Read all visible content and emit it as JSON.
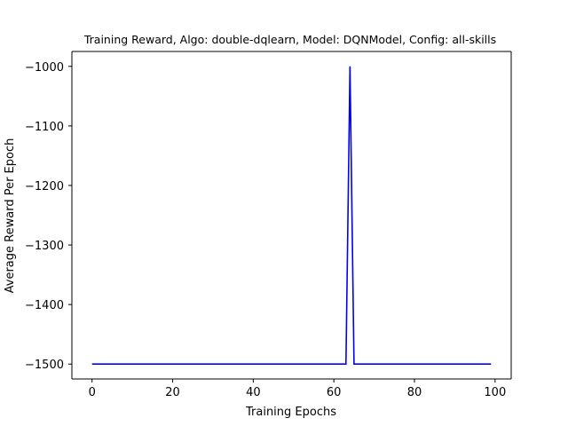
{
  "chart_data": {
    "type": "line",
    "title": "Training Reward, Algo: double-dqlearn, Model: DQNModel, Config: all-skills",
    "xlabel": "Training Epochs",
    "ylabel": "Average Reward Per Epoch",
    "xlim": [
      -5,
      104
    ],
    "ylim": [
      -1525,
      -975
    ],
    "xticks": [
      0,
      20,
      40,
      60,
      80,
      100
    ],
    "yticks": [
      -1500,
      -1400,
      -1300,
      -1200,
      -1100,
      -1000
    ],
    "xtick_labels": [
      "0",
      "20",
      "40",
      "60",
      "80",
      "100"
    ],
    "ytick_labels": [
      "−1500",
      "−1400",
      "−1300",
      "−1200",
      "−1100",
      "−1000"
    ],
    "grid": false,
    "legend": false,
    "series": [
      {
        "color": "#0000ff",
        "x": [
          0,
          63,
          64,
          65,
          99
        ],
        "y": [
          -1500,
          -1500,
          -1000,
          -1500,
          -1500
        ]
      }
    ]
  }
}
